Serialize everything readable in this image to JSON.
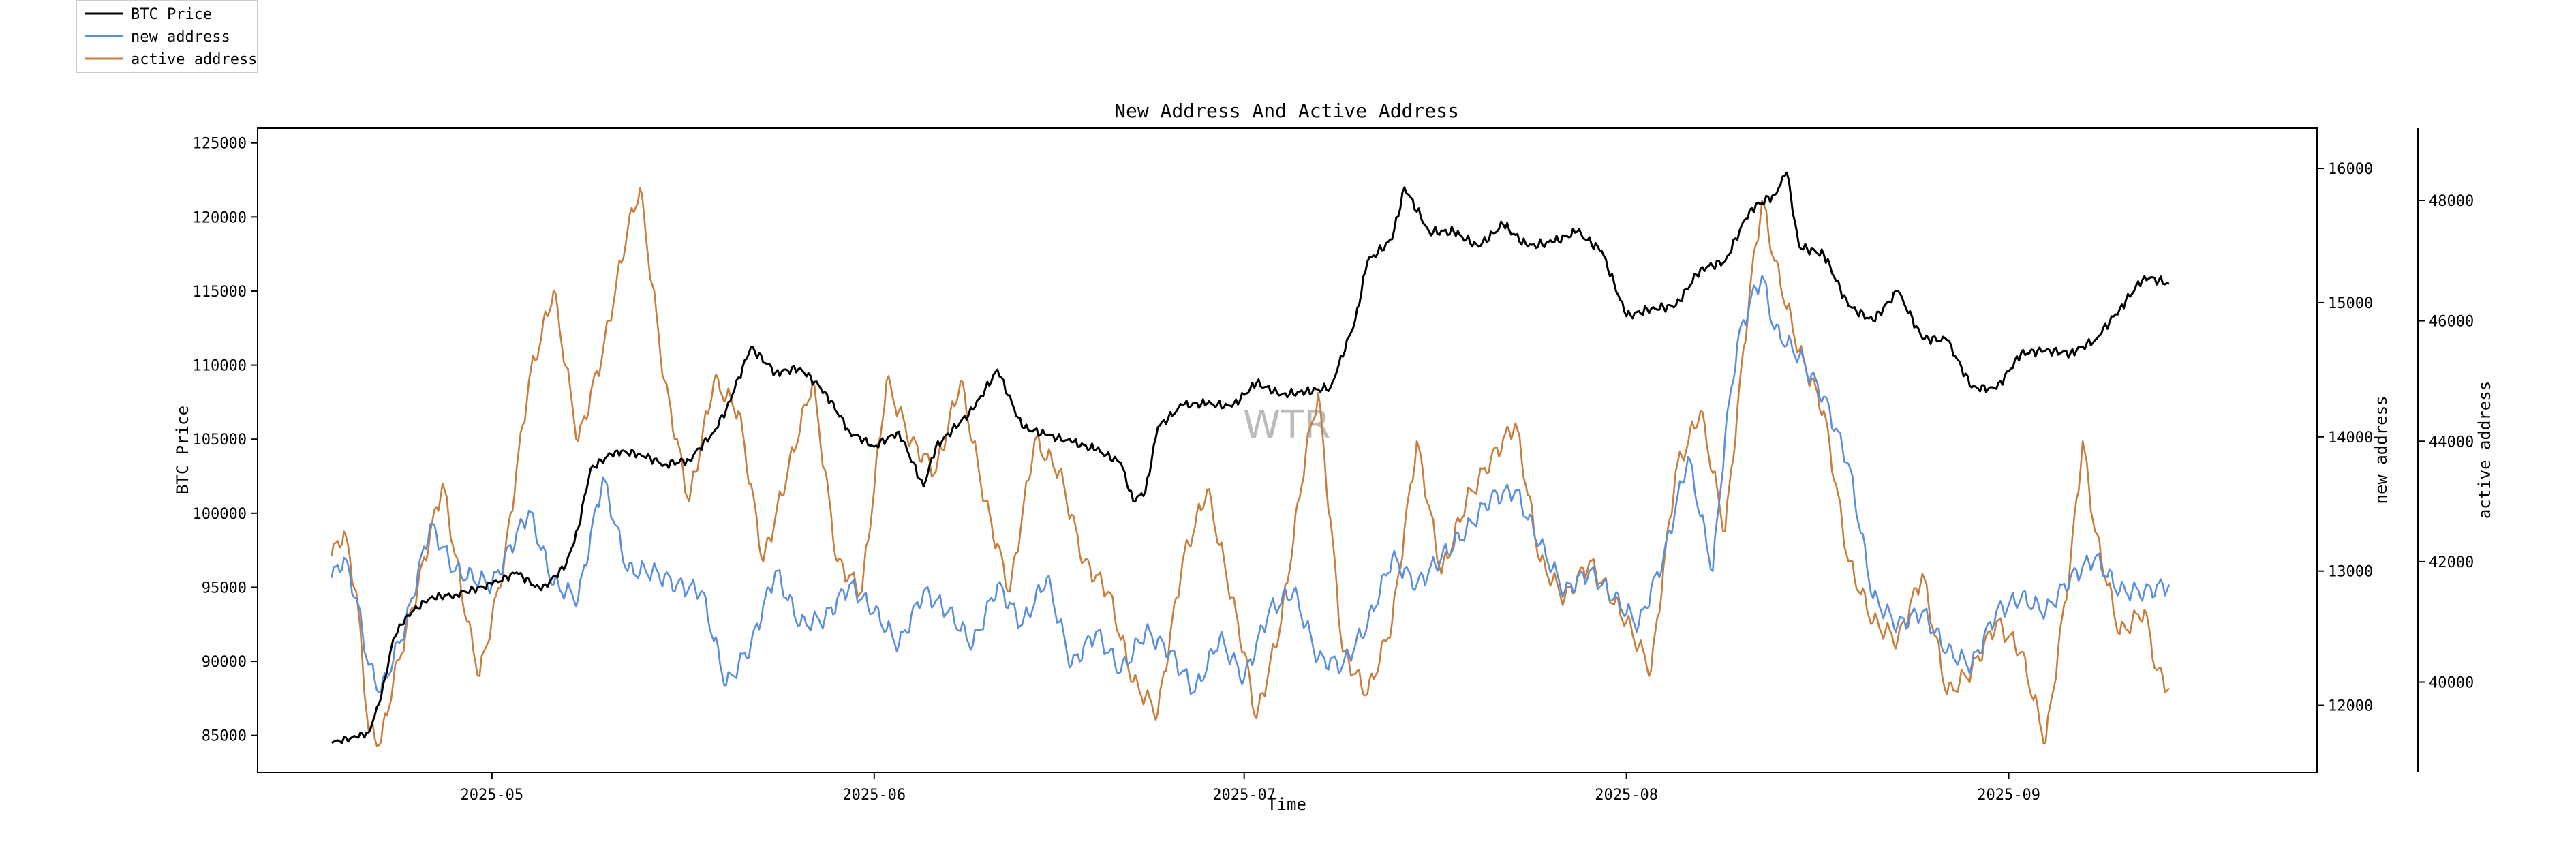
{
  "chart_data": {
    "type": "line",
    "title": "New Address And Active Address",
    "xlabel": "Time",
    "ylabel_left": "BTC Price",
    "ylabel_right1": "new address",
    "ylabel_right2": "active address",
    "x_range": [
      "2025-04-12",
      "2025-09-26"
    ],
    "data_range": [
      "2025-04-18",
      "2025-09-14"
    ],
    "x_ticks": [
      "2025-05",
      "2025-06",
      "2025-07",
      "2025-08",
      "2025-09"
    ],
    "y_left_range": [
      82500,
      126000
    ],
    "y_left_ticks": [
      85000,
      90000,
      95000,
      100000,
      105000,
      110000,
      115000,
      120000,
      125000
    ],
    "y_right1_range": [
      11500,
      16300
    ],
    "y_right1_ticks": [
      12000,
      13000,
      14000,
      15000,
      16000
    ],
    "y_right2_range": [
      38500,
      49200
    ],
    "y_right2_ticks": [
      40000,
      42000,
      44000,
      46000,
      48000
    ],
    "grid": false,
    "legend_position": "top-left",
    "watermark": "WTR",
    "series": [
      {
        "name": "BTC Price",
        "axis": "left",
        "color": "#000000",
        "points": [
          [
            "2025-04-18",
            84500
          ],
          [
            "2025-04-20",
            84900
          ],
          [
            "2025-04-21",
            85200
          ],
          [
            "2025-04-22",
            87500
          ],
          [
            "2025-04-23",
            91500
          ],
          [
            "2025-04-24",
            93000
          ],
          [
            "2025-04-26",
            94300
          ],
          [
            "2025-04-28",
            94500
          ],
          [
            "2025-05-01",
            95200
          ],
          [
            "2025-05-03",
            96000
          ],
          [
            "2025-05-05",
            94800
          ],
          [
            "2025-05-07",
            96500
          ],
          [
            "2025-05-08",
            99000
          ],
          [
            "2025-05-09",
            103000
          ],
          [
            "2025-05-11",
            104200
          ],
          [
            "2025-05-13",
            104000
          ],
          [
            "2025-05-15",
            103300
          ],
          [
            "2025-05-17",
            103600
          ],
          [
            "2025-05-19",
            105500
          ],
          [
            "2025-05-20",
            107000
          ],
          [
            "2025-05-22",
            111200
          ],
          [
            "2025-05-24",
            109500
          ],
          [
            "2025-05-26",
            109800
          ],
          [
            "2025-05-28",
            108200
          ],
          [
            "2025-05-30",
            105500
          ],
          [
            "2025-06-01",
            104500
          ],
          [
            "2025-06-03",
            105500
          ],
          [
            "2025-06-05",
            101800
          ],
          [
            "2025-06-06",
            104500
          ],
          [
            "2025-06-09",
            107000
          ],
          [
            "2025-06-11",
            109700
          ],
          [
            "2025-06-13",
            105800
          ],
          [
            "2025-06-15",
            105300
          ],
          [
            "2025-06-17",
            104800
          ],
          [
            "2025-06-19",
            104300
          ],
          [
            "2025-06-21",
            103400
          ],
          [
            "2025-06-22",
            100800
          ],
          [
            "2025-06-23",
            101500
          ],
          [
            "2025-06-24",
            105800
          ],
          [
            "2025-06-26",
            107300
          ],
          [
            "2025-06-28",
            107400
          ],
          [
            "2025-06-30",
            107200
          ],
          [
            "2025-07-02",
            108800
          ],
          [
            "2025-07-04",
            108000
          ],
          [
            "2025-07-06",
            108200
          ],
          [
            "2025-07-08",
            108500
          ],
          [
            "2025-07-10",
            113000
          ],
          [
            "2025-07-11",
            117000
          ],
          [
            "2025-07-13",
            118500
          ],
          [
            "2025-07-14",
            122000
          ],
          [
            "2025-07-16",
            119000
          ],
          [
            "2025-07-18",
            119000
          ],
          [
            "2025-07-20",
            118000
          ],
          [
            "2025-07-22",
            119500
          ],
          [
            "2025-07-24",
            118000
          ],
          [
            "2025-07-26",
            118300
          ],
          [
            "2025-07-28",
            119000
          ],
          [
            "2025-07-30",
            117700
          ],
          [
            "2025-08-01",
            113300
          ],
          [
            "2025-08-03",
            113800
          ],
          [
            "2025-08-05",
            114000
          ],
          [
            "2025-08-07",
            116500
          ],
          [
            "2025-08-09",
            117000
          ],
          [
            "2025-08-11",
            120500
          ],
          [
            "2025-08-13",
            121500
          ],
          [
            "2025-08-14",
            123000
          ],
          [
            "2025-08-15",
            118000
          ],
          [
            "2025-08-17",
            117500
          ],
          [
            "2025-08-19",
            114000
          ],
          [
            "2025-08-21",
            113000
          ],
          [
            "2025-08-23",
            115000
          ],
          [
            "2025-08-25",
            111800
          ],
          [
            "2025-08-27",
            111700
          ],
          [
            "2025-08-29",
            108500
          ],
          [
            "2025-08-31",
            108400
          ],
          [
            "2025-09-02",
            110800
          ],
          [
            "2025-09-04",
            111000
          ],
          [
            "2025-09-06",
            110800
          ],
          [
            "2025-09-08",
            111700
          ],
          [
            "2025-09-10",
            113800
          ],
          [
            "2025-09-12",
            116000
          ],
          [
            "2025-09-14",
            115500
          ]
        ]
      },
      {
        "name": "new address",
        "axis": "right1",
        "color": "#5b8fdc",
        "points": [
          [
            "2025-04-18",
            12950
          ],
          [
            "2025-04-19",
            13100
          ],
          [
            "2025-04-20",
            12800
          ],
          [
            "2025-04-21",
            12300
          ],
          [
            "2025-04-22",
            12100
          ],
          [
            "2025-04-24",
            12600
          ],
          [
            "2025-04-26",
            13350
          ],
          [
            "2025-04-28",
            13000
          ],
          [
            "2025-05-01",
            12900
          ],
          [
            "2025-05-04",
            13450
          ],
          [
            "2025-05-06",
            12900
          ],
          [
            "2025-05-08",
            12800
          ],
          [
            "2025-05-10",
            13700
          ],
          [
            "2025-05-12",
            13000
          ],
          [
            "2025-05-14",
            13000
          ],
          [
            "2025-05-16",
            12900
          ],
          [
            "2025-05-18",
            12850
          ],
          [
            "2025-05-20",
            12150
          ],
          [
            "2025-05-22",
            12450
          ],
          [
            "2025-05-24",
            13000
          ],
          [
            "2025-05-26",
            12600
          ],
          [
            "2025-05-28",
            12650
          ],
          [
            "2025-05-30",
            12900
          ],
          [
            "2025-06-01",
            12700
          ],
          [
            "2025-06-03",
            12450
          ],
          [
            "2025-06-05",
            12850
          ],
          [
            "2025-06-07",
            12700
          ],
          [
            "2025-06-09",
            12450
          ],
          [
            "2025-06-11",
            12900
          ],
          [
            "2025-06-13",
            12600
          ],
          [
            "2025-06-15",
            12950
          ],
          [
            "2025-06-17",
            12300
          ],
          [
            "2025-06-19",
            12550
          ],
          [
            "2025-06-21",
            12250
          ],
          [
            "2025-06-23",
            12550
          ],
          [
            "2025-06-25",
            12400
          ],
          [
            "2025-06-27",
            12100
          ],
          [
            "2025-06-29",
            12500
          ],
          [
            "2025-07-01",
            12200
          ],
          [
            "2025-07-03",
            12700
          ],
          [
            "2025-07-05",
            12850
          ],
          [
            "2025-07-07",
            12350
          ],
          [
            "2025-07-09",
            12300
          ],
          [
            "2025-07-11",
            12600
          ],
          [
            "2025-07-13",
            13100
          ],
          [
            "2025-07-15",
            12900
          ],
          [
            "2025-07-17",
            13100
          ],
          [
            "2025-07-19",
            13300
          ],
          [
            "2025-07-21",
            13550
          ],
          [
            "2025-07-23",
            13600
          ],
          [
            "2025-07-25",
            13200
          ],
          [
            "2025-07-27",
            12850
          ],
          [
            "2025-07-29",
            13000
          ],
          [
            "2025-07-31",
            12800
          ],
          [
            "2025-08-02",
            12600
          ],
          [
            "2025-08-04",
            13100
          ],
          [
            "2025-08-06",
            13850
          ],
          [
            "2025-08-08",
            13000
          ],
          [
            "2025-08-09",
            14000
          ],
          [
            "2025-08-10",
            14700
          ],
          [
            "2025-08-11",
            15000
          ],
          [
            "2025-08-12",
            15200
          ],
          [
            "2025-08-13",
            14800
          ],
          [
            "2025-08-15",
            14600
          ],
          [
            "2025-08-17",
            14300
          ],
          [
            "2025-08-19",
            13800
          ],
          [
            "2025-08-21",
            12800
          ],
          [
            "2025-08-23",
            12600
          ],
          [
            "2025-08-25",
            12700
          ],
          [
            "2025-08-27",
            12400
          ],
          [
            "2025-08-29",
            12300
          ],
          [
            "2025-08-31",
            12700
          ],
          [
            "2025-09-02",
            12800
          ],
          [
            "2025-09-04",
            12700
          ],
          [
            "2025-09-06",
            12950
          ],
          [
            "2025-09-08",
            13100
          ],
          [
            "2025-09-10",
            12850
          ],
          [
            "2025-09-12",
            12850
          ],
          [
            "2025-09-14",
            12900
          ]
        ]
      },
      {
        "name": "active address",
        "axis": "right2",
        "color": "#c87e3c",
        "points": [
          [
            "2025-04-18",
            42100
          ],
          [
            "2025-04-19",
            42500
          ],
          [
            "2025-04-20",
            41500
          ],
          [
            "2025-04-21",
            39200
          ],
          [
            "2025-04-22",
            39000
          ],
          [
            "2025-04-23",
            40000
          ],
          [
            "2025-04-25",
            41600
          ],
          [
            "2025-04-27",
            43300
          ],
          [
            "2025-04-29",
            41000
          ],
          [
            "2025-04-30",
            40100
          ],
          [
            "2025-05-02",
            42000
          ],
          [
            "2025-05-04",
            45000
          ],
          [
            "2025-05-06",
            46500
          ],
          [
            "2025-05-08",
            44000
          ],
          [
            "2025-05-10",
            45500
          ],
          [
            "2025-05-12",
            47500
          ],
          [
            "2025-05-13",
            48200
          ],
          [
            "2025-05-15",
            45000
          ],
          [
            "2025-05-17",
            43000
          ],
          [
            "2025-05-19",
            45000
          ],
          [
            "2025-05-21",
            44500
          ],
          [
            "2025-05-23",
            42000
          ],
          [
            "2025-05-25",
            43500
          ],
          [
            "2025-05-27",
            45000
          ],
          [
            "2025-05-29",
            42000
          ],
          [
            "2025-05-31",
            41500
          ],
          [
            "2025-06-02",
            45000
          ],
          [
            "2025-06-04",
            44000
          ],
          [
            "2025-06-06",
            43500
          ],
          [
            "2025-06-08",
            45000
          ],
          [
            "2025-06-10",
            43000
          ],
          [
            "2025-06-12",
            41500
          ],
          [
            "2025-06-14",
            44000
          ],
          [
            "2025-06-16",
            43500
          ],
          [
            "2025-06-18",
            42000
          ],
          [
            "2025-06-20",
            41500
          ],
          [
            "2025-06-22",
            40000
          ],
          [
            "2025-06-24",
            39500
          ],
          [
            "2025-06-26",
            42000
          ],
          [
            "2025-06-28",
            43200
          ],
          [
            "2025-07-01",
            40500
          ],
          [
            "2025-07-02",
            39400
          ],
          [
            "2025-07-04",
            41000
          ],
          [
            "2025-07-06",
            43800
          ],
          [
            "2025-07-07",
            44800
          ],
          [
            "2025-07-09",
            40500
          ],
          [
            "2025-07-11",
            39800
          ],
          [
            "2025-07-13",
            41000
          ],
          [
            "2025-07-15",
            44000
          ],
          [
            "2025-07-17",
            41800
          ],
          [
            "2025-07-19",
            43000
          ],
          [
            "2025-07-21",
            43700
          ],
          [
            "2025-07-23",
            44300
          ],
          [
            "2025-07-25",
            42000
          ],
          [
            "2025-07-27",
            41400
          ],
          [
            "2025-07-29",
            42000
          ],
          [
            "2025-08-01",
            41000
          ],
          [
            "2025-08-03",
            40200
          ],
          [
            "2025-08-05",
            43500
          ],
          [
            "2025-08-07",
            44500
          ],
          [
            "2025-08-09",
            42500
          ],
          [
            "2025-08-11",
            46500
          ],
          [
            "2025-08-12",
            48000
          ],
          [
            "2025-08-13",
            47000
          ],
          [
            "2025-08-15",
            45500
          ],
          [
            "2025-08-17",
            44500
          ],
          [
            "2025-08-19",
            42000
          ],
          [
            "2025-08-21",
            41000
          ],
          [
            "2025-08-23",
            40700
          ],
          [
            "2025-08-25",
            41800
          ],
          [
            "2025-08-27",
            39800
          ],
          [
            "2025-08-29",
            40200
          ],
          [
            "2025-08-31",
            41000
          ],
          [
            "2025-09-02",
            40500
          ],
          [
            "2025-09-04",
            39000
          ],
          [
            "2025-09-06",
            42000
          ],
          [
            "2025-09-07",
            44000
          ],
          [
            "2025-09-08",
            42500
          ],
          [
            "2025-09-10",
            40800
          ],
          [
            "2025-09-12",
            41200
          ],
          [
            "2025-09-13",
            40200
          ],
          [
            "2025-09-14",
            39900
          ]
        ]
      }
    ]
  }
}
